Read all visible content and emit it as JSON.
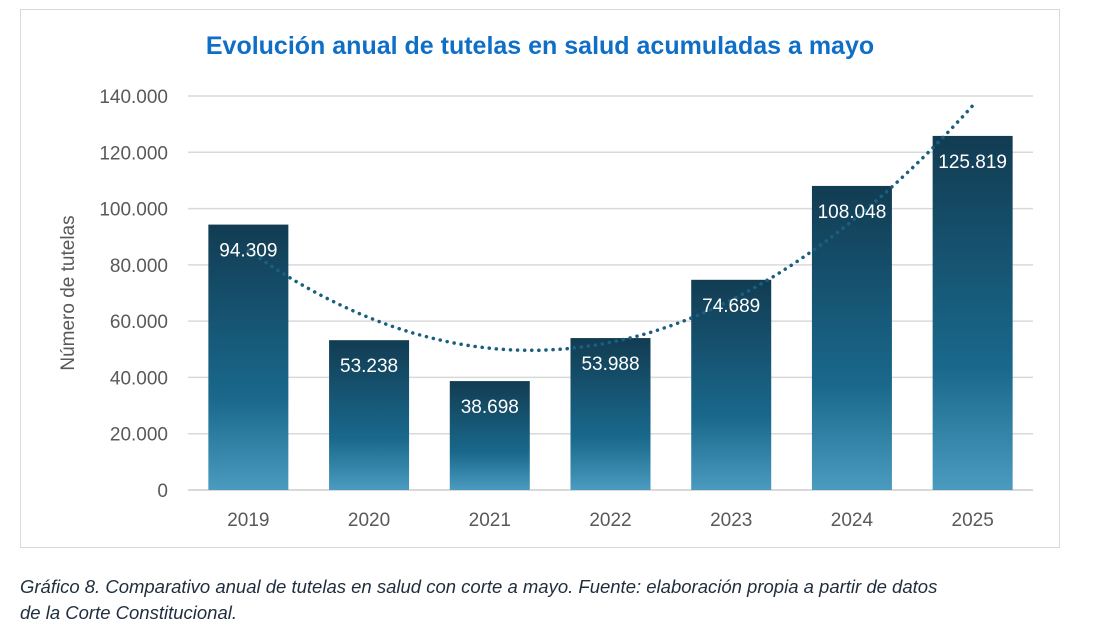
{
  "chart_data": {
    "type": "bar",
    "title": "Evolución anual de tutelas en salud acumuladas a mayo",
    "xlabel": "",
    "ylabel": "Número de tutelas",
    "categories": [
      "2019",
      "2020",
      "2021",
      "2022",
      "2023",
      "2024",
      "2025"
    ],
    "values": [
      94309,
      53238,
      38698,
      53988,
      74689,
      108048,
      125819
    ],
    "value_labels": [
      "94.309",
      "53.238",
      "38.698",
      "53.988",
      "74.689",
      "108.048",
      "125.819"
    ],
    "ylim": [
      0,
      140000
    ],
    "yticks": [
      0,
      20000,
      40000,
      60000,
      80000,
      100000,
      120000,
      140000
    ],
    "ytick_labels": [
      "0",
      "20.000",
      "40.000",
      "60.000",
      "80.000",
      "100.000",
      "120.000",
      "140.000"
    ],
    "grid": true,
    "legend": "none",
    "trendline": {
      "type": "polynomial",
      "style": "dotted",
      "start_value": 85000,
      "end_value": 135000
    },
    "colors": {
      "bar_top": "#123c52",
      "bar_mid": "#19688c",
      "bar_bottom": "#4a9bbf",
      "trend": "#1a5f80",
      "title": "#0f6fc6",
      "grid": "#d9d9d9",
      "tick_text": "#595959"
    }
  },
  "caption": {
    "line1": "Gráfico 8. Comparativo anual de tutelas en salud con corte a mayo.  Fuente: elaboración propia a partir de datos",
    "line2": "de la Corte Constitucional."
  }
}
